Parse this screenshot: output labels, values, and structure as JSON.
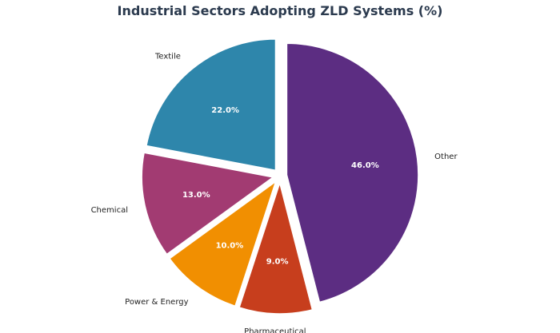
{
  "chart_data": {
    "type": "pie",
    "title": "Industrial Sectors Adopting ZLD Systems (%)",
    "categories": [
      "Textile",
      "Chemical",
      "Power & Energy",
      "Pharmaceutical",
      "Other"
    ],
    "values": [
      22.0,
      13.0,
      10.0,
      9.0,
      46.0
    ],
    "percent_labels": [
      "22.0%",
      "13.0%",
      "10.0%",
      "9.0%",
      "46.0%"
    ],
    "colors": [
      "#2e86ab",
      "#a23b72",
      "#f18f01",
      "#c73e1d",
      "#5c2d82"
    ],
    "explode": [
      0.05,
      0.05,
      0.05,
      0.05,
      0.05
    ],
    "start_angle_deg": 90,
    "direction": "counterclockwise",
    "legend": "none"
  }
}
